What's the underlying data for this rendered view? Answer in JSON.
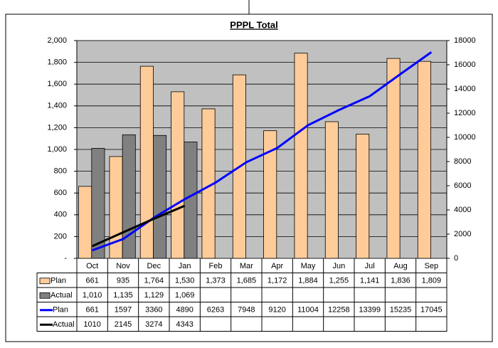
{
  "chart_data": {
    "type": "bar",
    "title": "PPPL Total",
    "categories": [
      "Oct",
      "Nov",
      "Dec",
      "Jan",
      "Feb",
      "Mar",
      "Apr",
      "May",
      "Jun",
      "Jul",
      "Aug",
      "Sep"
    ],
    "series": [
      {
        "name": "Plan",
        "type": "bar",
        "color": "#ffcc99",
        "values": [
          661,
          935,
          1764,
          1530,
          1373,
          1685,
          1172,
          1884,
          1255,
          1141,
          1836,
          1809
        ],
        "value_labels": [
          "661",
          "935",
          "1,764",
          "1,530",
          "1,373",
          "1,685",
          "1,172",
          "1,884",
          "1,255",
          "1,141",
          "1,836",
          "1,809"
        ]
      },
      {
        "name": "Actual",
        "type": "bar",
        "color": "#808080",
        "values": [
          1010,
          1135,
          1129,
          1069,
          null,
          null,
          null,
          null,
          null,
          null,
          null,
          null
        ],
        "value_labels": [
          "1,010",
          "1,135",
          "1,129",
          "1,069",
          null,
          null,
          null,
          null,
          null,
          null,
          null,
          null
        ]
      },
      {
        "name": "Plan",
        "type": "line",
        "axis": "y2",
        "color": "#0000ff",
        "values": [
          661,
          1597,
          3360,
          4890,
          6263,
          7948,
          9120,
          11004,
          12258,
          13399,
          15235,
          17045
        ]
      },
      {
        "name": "Actual",
        "type": "line",
        "axis": "y2",
        "color": "#000000",
        "values": [
          1010,
          2145,
          3274,
          4343,
          null,
          null,
          null,
          null,
          null,
          null,
          null,
          null
        ]
      }
    ],
    "ylim": [
      0,
      2000
    ],
    "yticks": [
      {
        "value": 0,
        "label": "-"
      },
      200,
      400,
      600,
      800,
      {
        "value": 1000,
        "label": "1,000"
      },
      {
        "value": 1200,
        "label": "1,200"
      },
      {
        "value": 1400,
        "label": "1,400"
      },
      {
        "value": 1600,
        "label": "1,600"
      },
      {
        "value": 1800,
        "label": "1,800"
      },
      {
        "value": 2000,
        "label": "2,000"
      }
    ],
    "y2lim": [
      0,
      18000
    ],
    "y2ticks": [
      0,
      2000,
      4000,
      6000,
      8000,
      10000,
      12000,
      14000,
      16000,
      18000
    ],
    "grid": true
  }
}
